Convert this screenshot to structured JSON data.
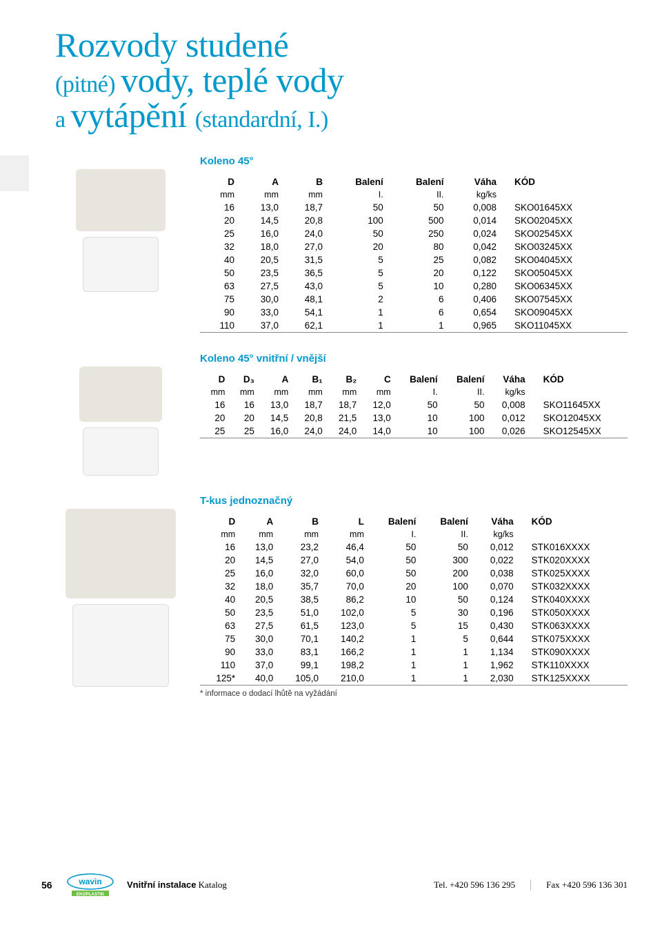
{
  "title": {
    "line1_big": "Rozvody studené",
    "line2_small_a": "(pitné) ",
    "line2_big": "vody, teplé vody",
    "line3_small_a": "a ",
    "line3_big": "vytápění ",
    "line3_small_b": "(standardní, I.)",
    "color": "#0099cc"
  },
  "tables": {
    "t1": {
      "title": "Koleno 45°",
      "columns": [
        "D",
        "A",
        "B",
        "Balení",
        "Balení",
        "Váha",
        "KÓD"
      ],
      "units": [
        "mm",
        "mm",
        "mm",
        "I.",
        "II.",
        "kg/ks",
        ""
      ],
      "rows": [
        [
          "16",
          "13,0",
          "18,7",
          "50",
          "50",
          "0,008",
          "SKO01645XX"
        ],
        [
          "20",
          "14,5",
          "20,8",
          "100",
          "500",
          "0,014",
          "SKO02045XX"
        ],
        [
          "25",
          "16,0",
          "24,0",
          "50",
          "250",
          "0,024",
          "SKO02545XX"
        ],
        [
          "32",
          "18,0",
          "27,0",
          "20",
          "80",
          "0,042",
          "SKO03245XX"
        ],
        [
          "40",
          "20,5",
          "31,5",
          "5",
          "25",
          "0,082",
          "SKO04045XX"
        ],
        [
          "50",
          "23,5",
          "36,5",
          "5",
          "20",
          "0,122",
          "SKO05045XX"
        ],
        [
          "63",
          "27,5",
          "43,0",
          "5",
          "10",
          "0,280",
          "SKO06345XX"
        ],
        [
          "75",
          "30,0",
          "48,1",
          "2",
          "6",
          "0,406",
          "SKO07545XX"
        ],
        [
          "90",
          "33,0",
          "54,1",
          "1",
          "6",
          "0,654",
          "SKO09045XX"
        ],
        [
          "110",
          "37,0",
          "62,1",
          "1",
          "1",
          "0,965",
          "SKO11045XX"
        ]
      ]
    },
    "t2": {
      "title": "Koleno 45° vnitřní / vnější",
      "columns": [
        "D",
        "D₃",
        "A",
        "B₁",
        "B₂",
        "C",
        "Balení",
        "Balení",
        "Váha",
        "KÓD"
      ],
      "units": [
        "mm",
        "mm",
        "mm",
        "mm",
        "mm",
        "mm",
        "I.",
        "II.",
        "kg/ks",
        ""
      ],
      "rows": [
        [
          "16",
          "16",
          "13,0",
          "18,7",
          "18,7",
          "12,0",
          "50",
          "50",
          "0,008",
          "SKO11645XX"
        ],
        [
          "20",
          "20",
          "14,5",
          "20,8",
          "21,5",
          "13,0",
          "10",
          "100",
          "0,012",
          "SKO12045XX"
        ],
        [
          "25",
          "25",
          "16,0",
          "24,0",
          "24,0",
          "14,0",
          "10",
          "100",
          "0,026",
          "SKO12545XX"
        ]
      ]
    },
    "t3": {
      "title": "T-kus jednoznačný",
      "columns": [
        "D",
        "A",
        "B",
        "L",
        "Balení",
        "Balení",
        "Váha",
        "KÓD"
      ],
      "units": [
        "mm",
        "mm",
        "mm",
        "mm",
        "I.",
        "II.",
        "kg/ks",
        ""
      ],
      "rows": [
        [
          "16",
          "13,0",
          "23,2",
          "46,4",
          "50",
          "50",
          "0,012",
          "STK016XXXX"
        ],
        [
          "20",
          "14,5",
          "27,0",
          "54,0",
          "50",
          "300",
          "0,022",
          "STK020XXXX"
        ],
        [
          "25",
          "16,0",
          "32,0",
          "60,0",
          "50",
          "200",
          "0,038",
          "STK025XXXX"
        ],
        [
          "32",
          "18,0",
          "35,7",
          "70,0",
          "20",
          "100",
          "0,070",
          "STK032XXXX"
        ],
        [
          "40",
          "20,5",
          "38,5",
          "86,2",
          "10",
          "50",
          "0,124",
          "STK040XXXX"
        ],
        [
          "50",
          "23,5",
          "51,0",
          "102,0",
          "5",
          "30",
          "0,196",
          "STK050XXXX"
        ],
        [
          "63",
          "27,5",
          "61,5",
          "123,0",
          "5",
          "15",
          "0,430",
          "STK063XXXX"
        ],
        [
          "75",
          "30,0",
          "70,1",
          "140,2",
          "1",
          "5",
          "0,644",
          "STK075XXXX"
        ],
        [
          "90",
          "33,0",
          "83,1",
          "166,2",
          "1",
          "1",
          "1,134",
          "STK090XXXX"
        ],
        [
          "110",
          "37,0",
          "99,1",
          "198,2",
          "1",
          "1",
          "1,962",
          "STK110XXXX"
        ],
        [
          "125*",
          "40,0",
          "105,0",
          "210,0",
          "1",
          "1",
          "2,030",
          "STK125XXXX"
        ]
      ],
      "footnote": "* informace o dodací lhůtě na vyžádání"
    }
  },
  "footer": {
    "page": "56",
    "brand_main": "wavin",
    "brand_sub": "EKOPLASTIK",
    "catalog_bold": "Vnitřní instalace",
    "catalog_rest": " Katalog",
    "tel": "Tel. +420 596 136 295",
    "fax": "Fax +420 596 136 301"
  },
  "style": {
    "accent": "#0099cc",
    "text": "#000000",
    "table_fontsize": 13.5,
    "title_serif_fontsize": 50
  }
}
